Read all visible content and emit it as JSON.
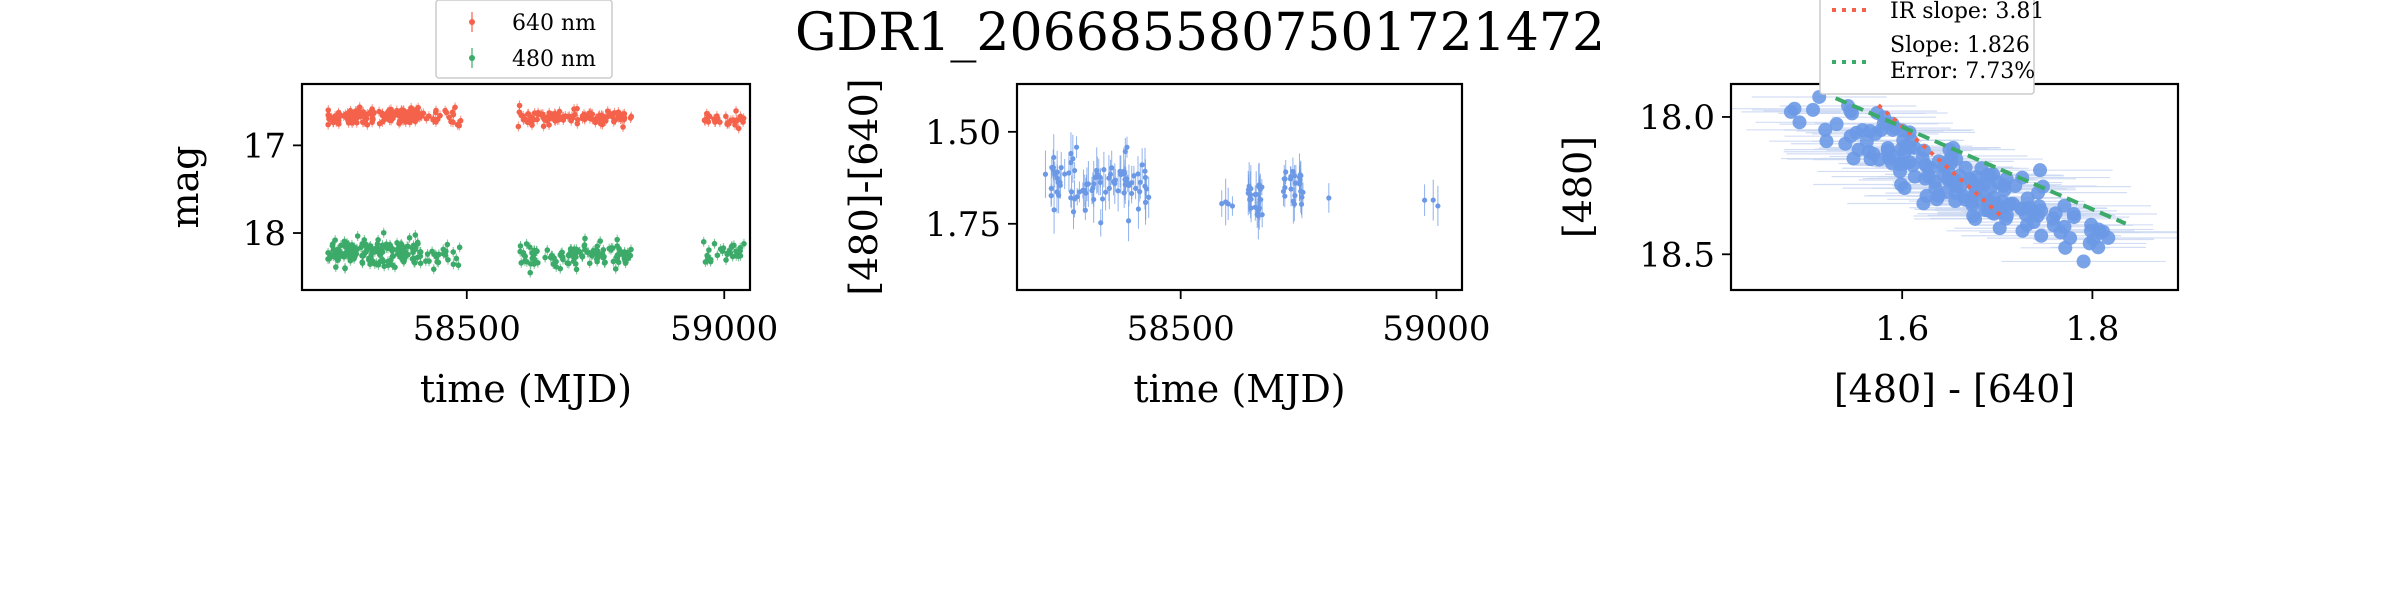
{
  "title": "GDR1_2066855807501721472",
  "colors": {
    "red": "#f4624b",
    "green": "#3caa69",
    "blue": "#6c99e6",
    "blue_err": "#c9d7f2",
    "axis": "#000000"
  },
  "chart_data": [
    {
      "type": "scatter",
      "id": "lightcurve",
      "xlabel": "time (MJD)",
      "ylabel": "mag",
      "xlim": [
        58180,
        59050
      ],
      "ylim": [
        18.65,
        16.3
      ],
      "y_inverted": true,
      "xticks": [
        58500,
        59000
      ],
      "yticks": [
        17,
        18
      ],
      "legend": {
        "placement": "top-center-outside",
        "entries": [
          {
            "label": "640 nm",
            "color": "red"
          },
          {
            "label": "480 nm",
            "color": "green"
          }
        ]
      },
      "series": [
        {
          "name": "640 nm",
          "color": "red",
          "seasons": [
            {
              "x": [
                58230,
                58410
              ],
              "y_mean": 16.67,
              "y_spread": 0.08,
              "n": 150
            },
            {
              "x": [
                58410,
                58490
              ],
              "y_mean": 16.68,
              "y_spread": 0.09,
              "n": 25
            },
            {
              "x": [
                58600,
                58820
              ],
              "y_mean": 16.68,
              "y_spread": 0.07,
              "n": 110
            },
            {
              "x": [
                58960,
                59040
              ],
              "y_mean": 16.7,
              "y_spread": 0.07,
              "n": 30
            }
          ]
        },
        {
          "name": "480 nm",
          "color": "green",
          "seasons": [
            {
              "x": [
                58230,
                58410
              ],
              "y_mean": 18.22,
              "y_spread": 0.14,
              "n": 170
            },
            {
              "x": [
                58410,
                58490
              ],
              "y_mean": 18.25,
              "y_spread": 0.14,
              "n": 25
            },
            {
              "x": [
                58600,
                58820
              ],
              "y_mean": 18.25,
              "y_spread": 0.12,
              "n": 120
            },
            {
              "x": [
                58960,
                59040
              ],
              "y_mean": 18.22,
              "y_spread": 0.12,
              "n": 30
            }
          ]
        }
      ]
    },
    {
      "type": "scatter",
      "id": "color_curve",
      "xlabel": "time (MJD)",
      "ylabel": "[480]-[640]",
      "xlim": [
        58180,
        59050
      ],
      "ylim": [
        1.93,
        1.37
      ],
      "y_inverted": true,
      "xticks": [
        58500,
        59000
      ],
      "yticks": [
        1.5,
        1.75
      ],
      "yticklabels": [
        "1.50",
        "1.75"
      ],
      "series": [
        {
          "name": "",
          "color": "blue",
          "seasons": [
            {
              "x": [
                58235,
                58440
              ],
              "y_mean": 1.63,
              "y_spread": 0.07,
              "n": 90
            },
            {
              "x": [
                58580,
                58610
              ],
              "y_mean": 1.69,
              "y_spread": 0.02,
              "n": 4
            },
            {
              "x": [
                58630,
                58660
              ],
              "y_mean": 1.69,
              "y_spread": 0.05,
              "n": 25
            },
            {
              "x": [
                58700,
                58740
              ],
              "y_mean": 1.65,
              "y_spread": 0.05,
              "n": 25
            },
            {
              "x": [
                58780,
                58790
              ],
              "y_mean": 1.68,
              "y_spread": 0.01,
              "n": 1
            },
            {
              "x": [
                58975,
                59025
              ],
              "y_mean": 1.68,
              "y_spread": 0.05,
              "n": 3
            }
          ]
        }
      ]
    },
    {
      "type": "scatter",
      "id": "color_magnitude",
      "xlabel": "[480] - [640]",
      "ylabel": "[480]",
      "xlim": [
        1.42,
        1.89
      ],
      "ylim": [
        18.63,
        17.88
      ],
      "y_inverted": true,
      "xticks": [
        1.6,
        1.8
      ],
      "yticks": [
        18.0,
        18.5
      ],
      "yticklabels": [
        "18.0",
        "18.5"
      ],
      "points": {
        "color": "blue",
        "n": 170,
        "x_range": [
          1.46,
          1.84
        ],
        "relation_slope": 1.826,
        "intercept_at_1_6": 18.14,
        "scatter": 0.06
      },
      "fits": [
        {
          "name": "IR slope: 3.81",
          "color": "red",
          "style": "dotted",
          "slope": 3.81,
          "x": [
            1.575,
            1.705
          ]
        },
        {
          "name": "Slope: 1.826",
          "name2": "Error: 7.73%",
          "color": "green",
          "style": "dashed",
          "slope": 1.826,
          "x": [
            1.53,
            1.835
          ]
        }
      ],
      "legend": {
        "placement": "top-center-outside",
        "entries": [
          {
            "label": "IR slope: 3.81",
            "color": "red"
          },
          {
            "label": "Slope: 1.826",
            "label2": "Error: 7.73%",
            "color": "green"
          }
        ]
      }
    }
  ]
}
